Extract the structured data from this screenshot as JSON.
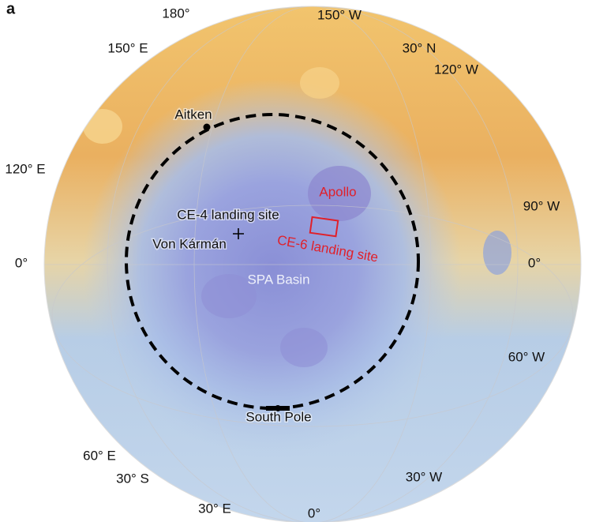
{
  "panel_label": "a",
  "graticule_labels": [
    "180°",
    "150° W",
    "150° E",
    "30° N",
    "120° W",
    "120° E",
    "90° W",
    "0°",
    "0°",
    "60° W",
    "60° E",
    "30° S",
    "30° W",
    "30° E",
    "0°"
  ],
  "features": {
    "aitken": "Aitken",
    "apollo": "Apollo",
    "ce4": "CE-4 landing site",
    "von_karman": "Von Kármán",
    "ce6": "CE-6 landing site",
    "spa": "SPA Basin",
    "south_pole": "South Pole"
  }
}
